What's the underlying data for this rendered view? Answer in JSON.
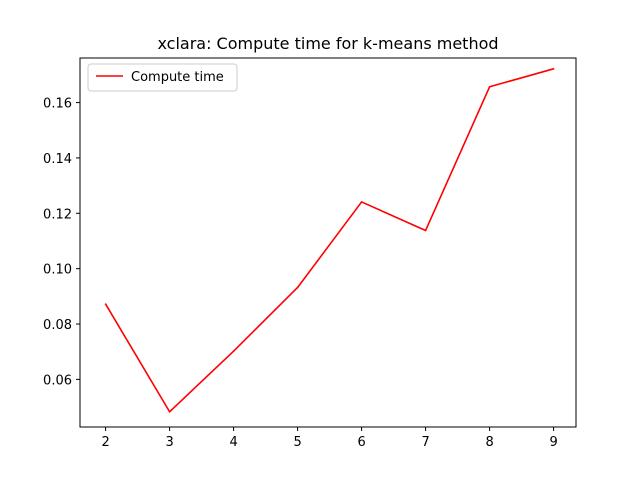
{
  "chart_data": {
    "type": "line",
    "title": "xclara: Compute time for k-means method",
    "xlabel": "",
    "ylabel": "",
    "x": [
      2,
      3,
      4,
      5,
      6,
      7,
      8,
      9
    ],
    "series": [
      {
        "name": "Compute time",
        "color": "#ff0000",
        "values": [
          0.0872,
          0.0483,
          0.0702,
          0.0932,
          0.1241,
          0.1138,
          0.1657,
          0.1722
        ]
      }
    ],
    "xlim": [
      1.6,
      9.35
    ],
    "ylim": [
      0.0428,
      0.1761
    ],
    "xticks": [
      2,
      3,
      4,
      5,
      6,
      7,
      8,
      9
    ],
    "xtick_labels": [
      "2",
      "3",
      "4",
      "5",
      "6",
      "7",
      "8",
      "9"
    ],
    "yticks": [
      0.06,
      0.08,
      0.1,
      0.12,
      0.14,
      0.16
    ],
    "ytick_labels": [
      "0.06",
      "0.08",
      "0.10",
      "0.12",
      "0.14",
      "0.16"
    ],
    "grid": false,
    "legend": "top-left"
  }
}
